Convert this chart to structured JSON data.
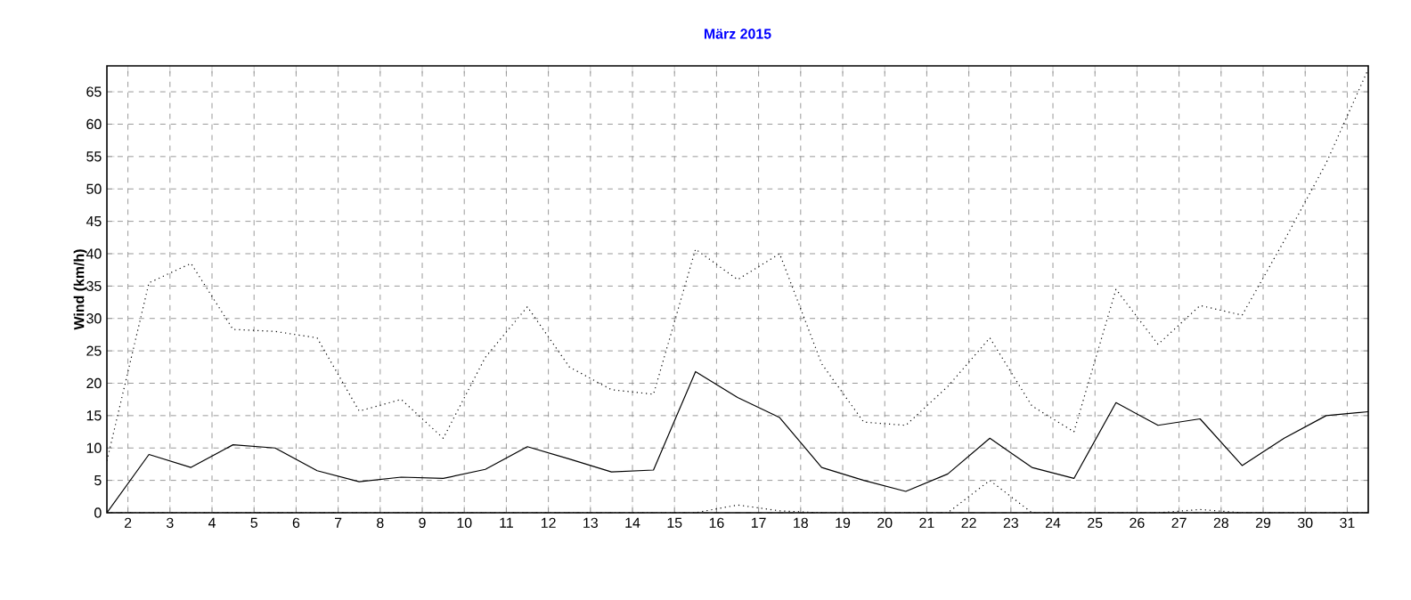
{
  "chart_data": {
    "type": "line",
    "title": "März 2015",
    "ylabel": "Wind (km/h)",
    "x": [
      1.5,
      2.5,
      3.5,
      4.5,
      5.5,
      6.5,
      7.5,
      8.5,
      9.5,
      10.5,
      11.5,
      12.5,
      13.5,
      14.5,
      15.5,
      16.5,
      17.5,
      18.5,
      19.5,
      20.5,
      21.5,
      22.5,
      23.5,
      24.5,
      25.5,
      26.5,
      27.5,
      28.5,
      29.5,
      30.5,
      31.5
    ],
    "series": [
      {
        "color": "#000000",
        "line_style": "dotted",
        "values": [
          8,
          35.5,
          38.5,
          28.3,
          28,
          27,
          15.7,
          17.5,
          11.5,
          24,
          31.8,
          22.5,
          19,
          18.3,
          40.7,
          36,
          40,
          23,
          14,
          13.5,
          19.5,
          27,
          16.5,
          12.5,
          34.5,
          26,
          32,
          30.5,
          42,
          54,
          68.5
        ]
      },
      {
        "color": "#000000",
        "line_style": "solid",
        "values": [
          0,
          9,
          7,
          10.5,
          10,
          6.5,
          4.8,
          5.5,
          5.3,
          6.7,
          10.2,
          8.3,
          6.3,
          6.6,
          21.8,
          17.8,
          14.7,
          7,
          5,
          3.3,
          6,
          11.5,
          7,
          5.3,
          17,
          13.5,
          14.5,
          7.3,
          11.5,
          15,
          15.6
        ]
      },
      {
        "color": "#000000",
        "line_style": "dotted",
        "values": [
          0,
          0,
          0,
          0,
          0,
          0,
          0,
          0,
          0,
          0,
          0,
          0,
          0,
          0,
          0,
          1.2,
          0.3,
          0,
          0,
          0,
          0,
          5,
          0,
          0,
          0,
          0,
          0.5,
          0,
          0,
          0,
          0
        ]
      }
    ],
    "xlim": [
      1.5,
      31.5
    ],
    "ylim": [
      0,
      69
    ],
    "xticks": [
      2,
      3,
      4,
      5,
      6,
      7,
      8,
      9,
      10,
      11,
      12,
      13,
      14,
      15,
      16,
      17,
      18,
      19,
      20,
      21,
      22,
      23,
      24,
      25,
      26,
      27,
      28,
      29,
      30,
      31
    ],
    "yticks": [
      0,
      5,
      10,
      15,
      20,
      25,
      30,
      35,
      40,
      45,
      50,
      55,
      60,
      65
    ],
    "grid": true,
    "marker": "none"
  }
}
